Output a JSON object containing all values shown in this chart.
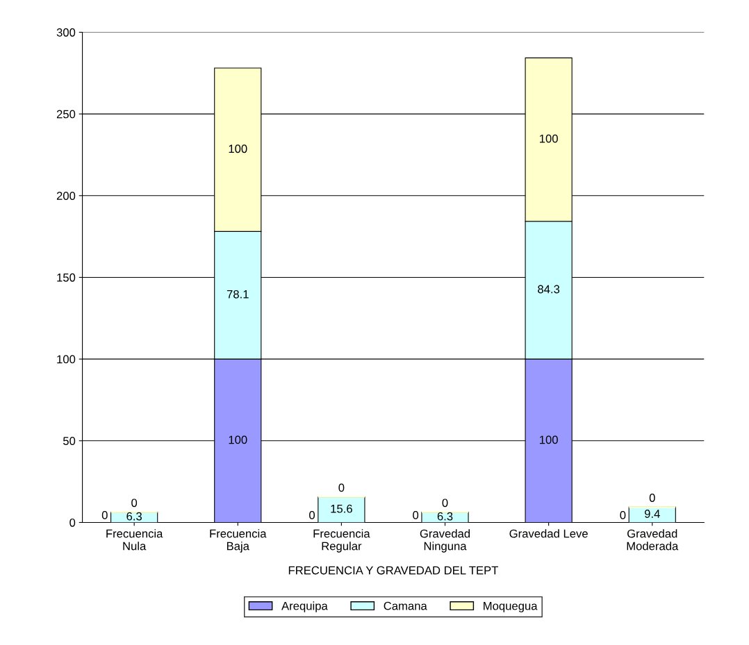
{
  "chart_data": {
    "type": "bar",
    "stacked": true,
    "xlabel": "FRECUENCIA Y GRAVEDAD DEL TEPT",
    "categories": [
      "Frecuencia\nNula",
      "Frecuencia\nBaja",
      "Frecuencia\nRegular",
      "Gravedad\nNinguna",
      "Gravedad Leve",
      "Gravedad\nModerada"
    ],
    "series": [
      {
        "name": "Arequipa",
        "color": "#9999ff",
        "values": [
          0,
          100,
          0,
          0,
          100,
          0
        ]
      },
      {
        "name": "Camana",
        "color": "#ccffff",
        "values": [
          6.3,
          78.1,
          15.6,
          6.3,
          84.3,
          9.4
        ]
      },
      {
        "name": "Moquegua",
        "color": "#ffffcc",
        "values": [
          0,
          100,
          0,
          0,
          100,
          0
        ]
      }
    ],
    "ylim": [
      0,
      300
    ],
    "yticks": [
      0,
      50,
      100,
      150,
      200,
      250,
      300
    ],
    "grid": "y",
    "legend": "bottom",
    "data_labels": true
  }
}
